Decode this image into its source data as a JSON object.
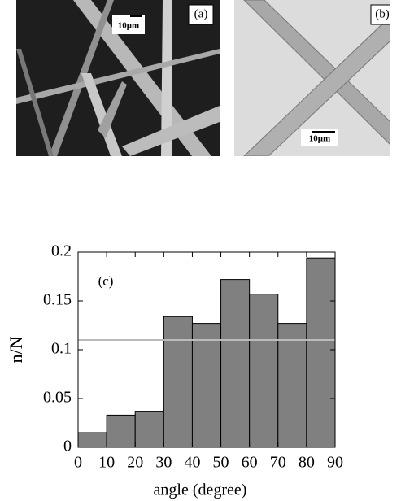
{
  "panels": [
    {
      "label": "(a)",
      "scale": "10μm"
    },
    {
      "label": "(b)",
      "scale": "10μm"
    }
  ],
  "chart_data": {
    "type": "histogram",
    "annotation": "(c)",
    "x_label": "angle (degree)",
    "y_label": "n/N",
    "bins": [
      0,
      10,
      20,
      30,
      40,
      50,
      60,
      70,
      80,
      90
    ],
    "values": [
      0.015,
      0.033,
      0.037,
      0.134,
      0.127,
      0.172,
      0.157,
      0.127,
      0.194
    ],
    "color": "#808080",
    "hline": 0.11,
    "xlim": [
      0,
      90
    ],
    "xticks": [
      0,
      10,
      20,
      30,
      40,
      50,
      60,
      70,
      80,
      90
    ],
    "ylim": [
      0,
      0.2
    ],
    "yticks": [
      0,
      0.05,
      0.1,
      0.15,
      0.2
    ]
  }
}
